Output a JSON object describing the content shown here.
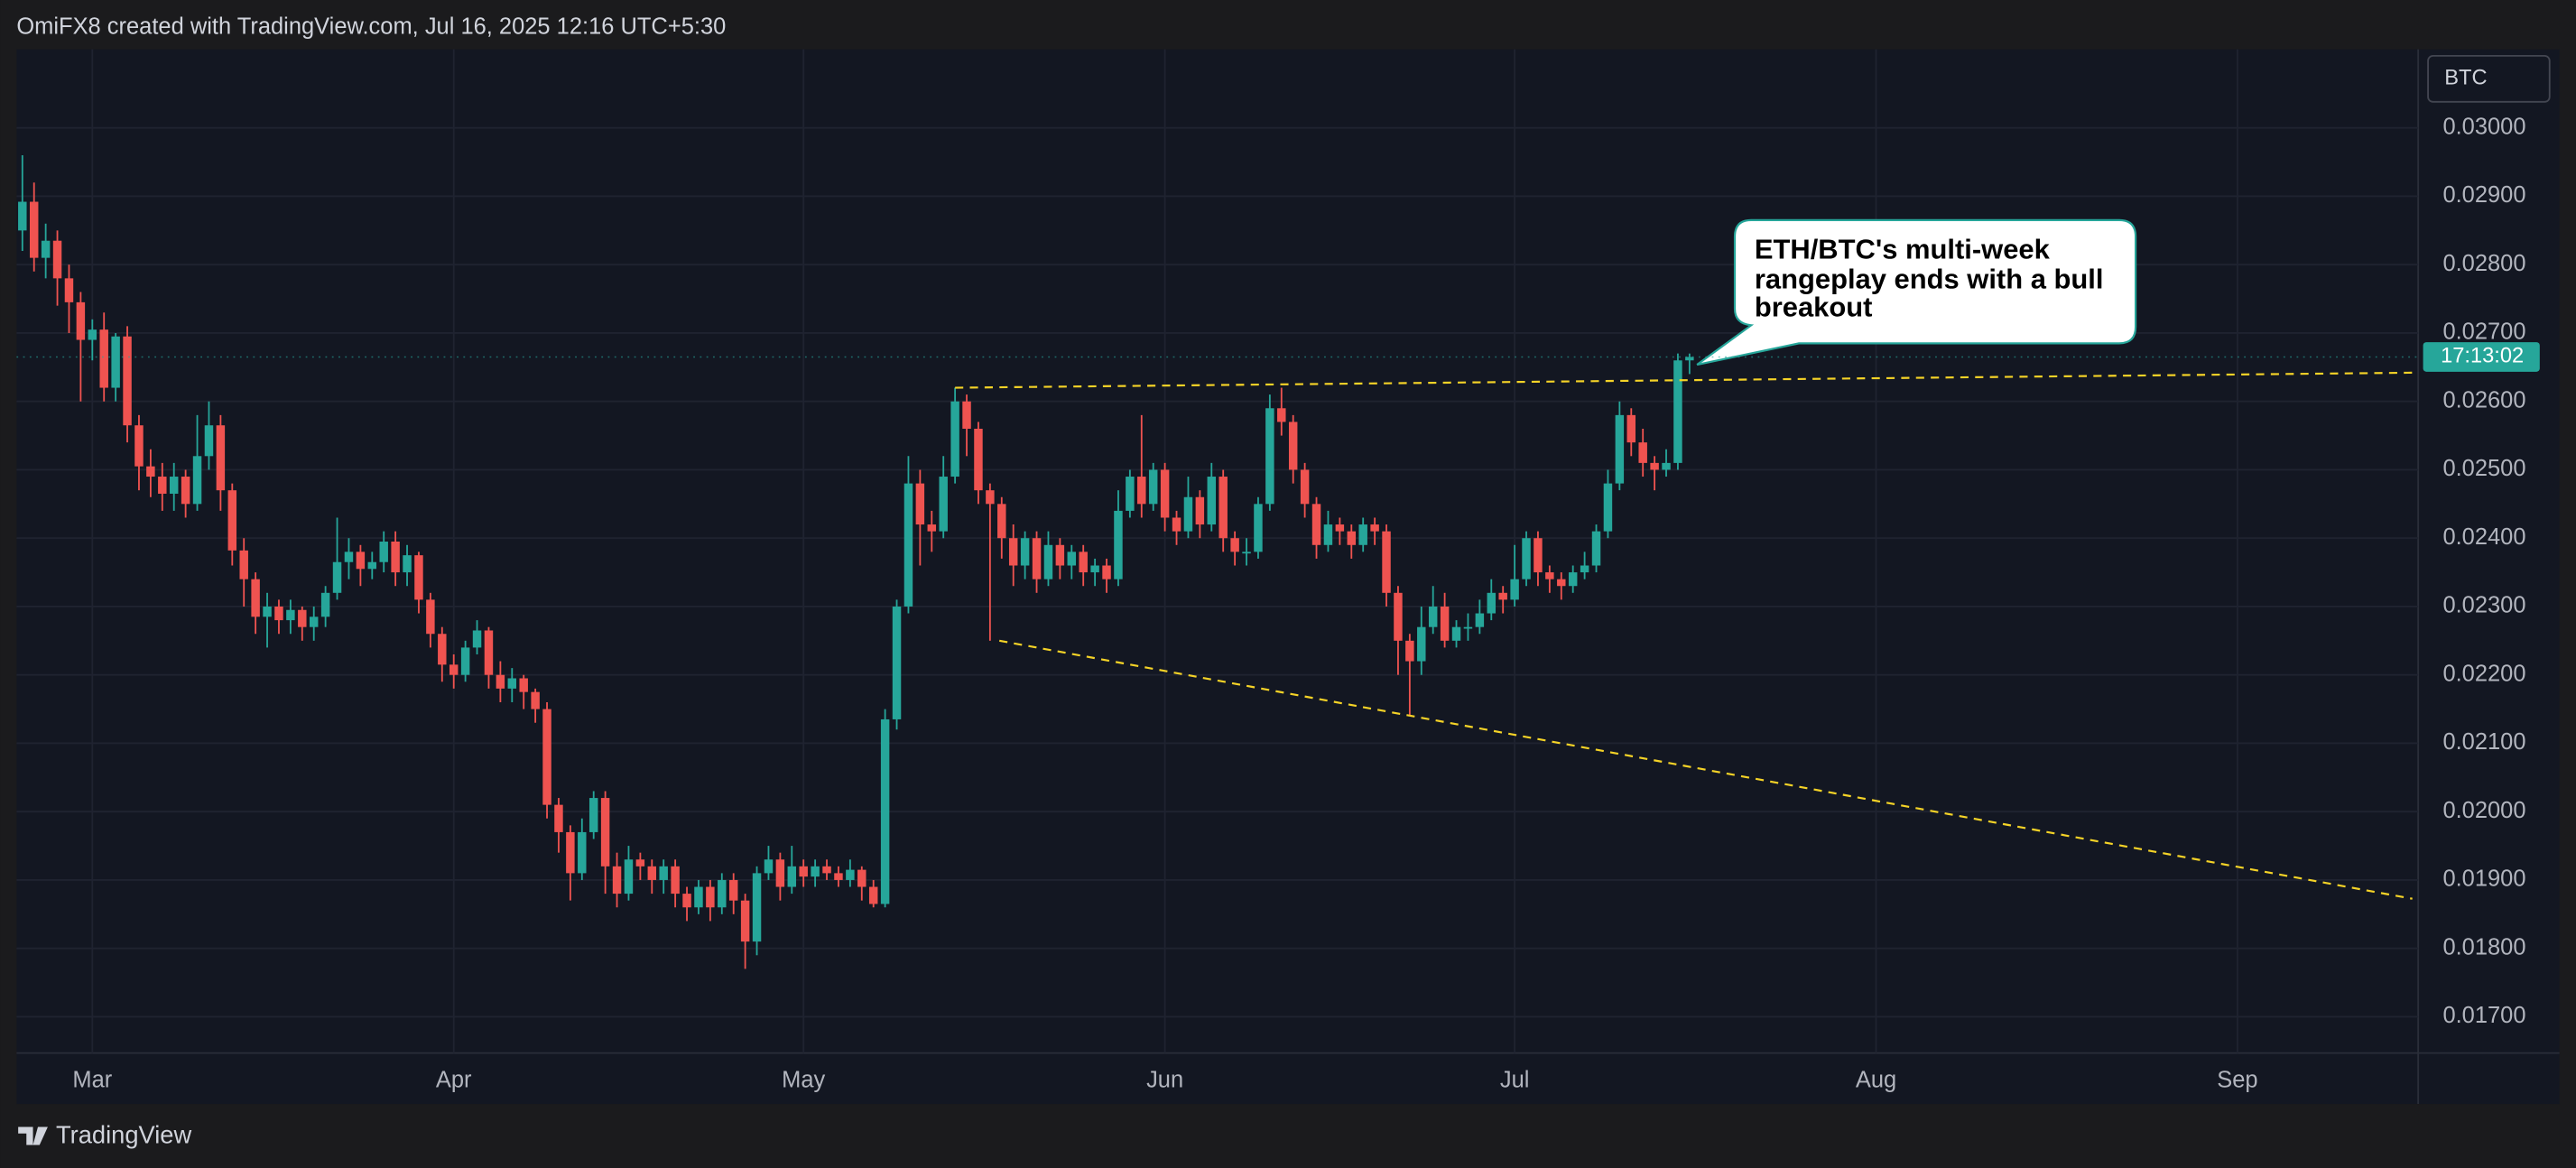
{
  "header": {
    "text": "OmiFX8 created with TradingView.com, Jul 16, 2025 12:16 UTC+5:30"
  },
  "footer": {
    "brand": "TradingView"
  },
  "chart_data": {
    "type": "candlestick",
    "symbol_label": "BTC",
    "countdown": "17:13:02",
    "annotation": {
      "lines": [
        "ETH/BTC's multi-week",
        "rangeplay ends with a bull",
        "breakout"
      ]
    },
    "up_color": "#26a69a",
    "down_color": "#ef5350",
    "grid": true,
    "xlim": [
      -0.5,
      205.5
    ],
    "xticks": [
      {
        "value": 6,
        "label": "Mar"
      },
      {
        "value": 37,
        "label": "Apr"
      },
      {
        "value": 67,
        "label": "May"
      },
      {
        "value": 98,
        "label": "Jun"
      },
      {
        "value": 128,
        "label": "Jul"
      },
      {
        "value": 159,
        "label": "Aug"
      },
      {
        "value": 190,
        "label": "Sep"
      }
    ],
    "ylim": [
      0.01647,
      0.03115
    ],
    "yticks": [
      {
        "value": 0.017,
        "label": "0.01700"
      },
      {
        "value": 0.018,
        "label": "0.01800"
      },
      {
        "value": 0.019,
        "label": "0.01900"
      },
      {
        "value": 0.02,
        "label": "0.02000"
      },
      {
        "value": 0.021,
        "label": "0.02100"
      },
      {
        "value": 0.022,
        "label": "0.02200"
      },
      {
        "value": 0.023,
        "label": "0.02300"
      },
      {
        "value": 0.024,
        "label": "0.02400"
      },
      {
        "value": 0.025,
        "label": "0.02500"
      },
      {
        "value": 0.026,
        "label": "0.02600"
      },
      {
        "value": 0.027,
        "label": "0.02700"
      },
      {
        "value": 0.028,
        "label": "0.02800"
      },
      {
        "value": 0.029,
        "label": "0.02900"
      },
      {
        "value": 0.03,
        "label": "0.03000"
      }
    ],
    "trendlines": [
      {
        "x": [
          80,
          205
        ],
        "y": [
          0.0262,
          0.02642
        ],
        "color": "#f5d327"
      },
      {
        "x": [
          83.8,
          205
        ],
        "y": [
          0.0225,
          0.018726
        ],
        "color": "#f5d327"
      }
    ],
    "x": [
      0,
      1,
      2,
      3,
      4,
      5,
      6,
      7,
      8,
      9,
      10,
      11,
      12,
      13,
      14,
      15,
      16,
      17,
      18,
      19,
      20,
      21,
      22,
      23,
      24,
      25,
      26,
      27,
      28,
      29,
      30,
      31,
      32,
      33,
      34,
      35,
      36,
      37,
      38,
      39,
      40,
      41,
      42,
      43,
      44,
      45,
      46,
      47,
      48,
      49,
      50,
      51,
      52,
      53,
      54,
      55,
      56,
      57,
      58,
      59,
      60,
      61,
      62,
      63,
      64,
      65,
      66,
      67,
      68,
      69,
      70,
      71,
      72,
      73,
      74,
      75,
      76,
      77,
      78,
      79,
      80,
      81,
      82,
      83,
      84,
      85,
      86,
      87,
      88,
      89,
      90,
      91,
      92,
      93,
      94,
      95,
      96,
      97,
      98,
      99,
      100,
      101,
      102,
      103,
      104,
      105,
      106,
      107,
      108,
      109,
      110,
      111,
      112,
      113,
      114,
      115,
      116,
      117,
      118,
      119,
      120,
      121,
      122,
      123,
      124,
      125,
      126,
      127,
      128,
      129,
      130,
      131,
      132,
      133,
      134,
      135,
      136,
      137,
      138,
      139,
      140,
      141,
      142,
      143
    ],
    "open": [
      0.0285,
      0.02892,
      0.0281,
      0.02835,
      0.0278,
      0.02745,
      0.0269,
      0.02705,
      0.0262,
      0.02695,
      0.02565,
      0.02505,
      0.0249,
      0.02465,
      0.0249,
      0.0245,
      0.0252,
      0.02565,
      0.0247,
      0.02382,
      0.0234,
      0.02285,
      0.023,
      0.0228,
      0.02295,
      0.0227,
      0.02285,
      0.0232,
      0.02365,
      0.0238,
      0.02355,
      0.02365,
      0.02395,
      0.0235,
      0.02375,
      0.0231,
      0.0226,
      0.02215,
      0.022,
      0.0224,
      0.02265,
      0.022,
      0.0218,
      0.02195,
      0.02175,
      0.0215,
      0.0201,
      0.0197,
      0.0191,
      0.0197,
      0.0202,
      0.0192,
      0.0188,
      0.0193,
      0.0192,
      0.019,
      0.0192,
      0.0188,
      0.0186,
      0.0189,
      0.0186,
      0.019,
      0.0187,
      0.0181,
      0.0191,
      0.0193,
      0.0189,
      0.0192,
      0.01905,
      0.0192,
      0.0191,
      0.019,
      0.01915,
      0.0189,
      0.01865,
      0.02135,
      0.023,
      0.0248,
      0.0242,
      0.0241,
      0.0249,
      0.026,
      0.0256,
      0.0247,
      0.0245,
      0.024,
      0.0236,
      0.024,
      0.0234,
      0.0239,
      0.0236,
      0.0238,
      0.0235,
      0.0236,
      0.0234,
      0.0244,
      0.0249,
      0.0245,
      0.025,
      0.0243,
      0.0241,
      0.0246,
      0.0242,
      0.0249,
      0.024,
      0.0238,
      0.0238,
      0.0245,
      0.0259,
      0.0257,
      0.025,
      0.0245,
      0.0239,
      0.0242,
      0.0241,
      0.0239,
      0.0242,
      0.0241,
      0.0232,
      0.0225,
      0.0222,
      0.0227,
      0.023,
      0.0225,
      0.0227,
      0.0227,
      0.0229,
      0.0232,
      0.0231,
      0.0234,
      0.024,
      0.0235,
      0.0234,
      0.0233,
      0.0235,
      0.0236,
      0.0241,
      0.0248,
      0.0258,
      0.0254,
      0.0251,
      0.025,
      0.0251,
      0.0266
    ],
    "high": [
      0.0296,
      0.0292,
      0.0286,
      0.0285,
      0.028,
      0.0276,
      0.0272,
      0.0273,
      0.027,
      0.0271,
      0.0258,
      0.0253,
      0.0251,
      0.0251,
      0.025,
      0.0258,
      0.026,
      0.0258,
      0.0248,
      0.024,
      0.0235,
      0.0232,
      0.0231,
      0.0231,
      0.023,
      0.023,
      0.0233,
      0.0243,
      0.024,
      0.0239,
      0.0238,
      0.0241,
      0.0241,
      0.0239,
      0.0238,
      0.0232,
      0.0227,
      0.0223,
      0.0225,
      0.0228,
      0.0227,
      0.0222,
      0.0221,
      0.022,
      0.0218,
      0.0216,
      0.0202,
      0.0198,
      0.0199,
      0.0203,
      0.0203,
      0.0194,
      0.0195,
      0.0194,
      0.0193,
      0.0193,
      0.0193,
      0.0189,
      0.019,
      0.019,
      0.0191,
      0.0191,
      0.0188,
      0.0192,
      0.0195,
      0.0194,
      0.0195,
      0.0193,
      0.0193,
      0.0193,
      0.0192,
      0.0193,
      0.0192,
      0.019,
      0.0215,
      0.0231,
      0.0252,
      0.025,
      0.0244,
      0.0252,
      0.0262,
      0.0261,
      0.0257,
      0.0248,
      0.0246,
      0.0242,
      0.0241,
      0.0241,
      0.0241,
      0.024,
      0.0239,
      0.0239,
      0.0237,
      0.0237,
      0.0247,
      0.025,
      0.0258,
      0.0251,
      0.0251,
      0.0244,
      0.0249,
      0.0247,
      0.0251,
      0.025,
      0.0241,
      0.024,
      0.0246,
      0.0261,
      0.0262,
      0.0258,
      0.0251,
      0.0246,
      0.0244,
      0.0243,
      0.0242,
      0.0243,
      0.0243,
      0.0242,
      0.0233,
      0.0226,
      0.023,
      0.0233,
      0.0232,
      0.0228,
      0.0229,
      0.0231,
      0.0234,
      0.0233,
      0.0239,
      0.0241,
      0.0241,
      0.0236,
      0.0235,
      0.0236,
      0.0238,
      0.0242,
      0.025,
      0.026,
      0.0259,
      0.0256,
      0.0252,
      0.0253,
      0.0267,
      0.0267
    ],
    "low": [
      0.0282,
      0.0279,
      0.0278,
      0.0274,
      0.027,
      0.026,
      0.0266,
      0.026,
      0.026,
      0.0254,
      0.0247,
      0.0246,
      0.0244,
      0.0244,
      0.0243,
      0.0244,
      0.025,
      0.0244,
      0.0236,
      0.023,
      0.0226,
      0.0224,
      0.0226,
      0.0226,
      0.0225,
      0.0225,
      0.0227,
      0.0231,
      0.0234,
      0.0233,
      0.0234,
      0.0235,
      0.0233,
      0.0233,
      0.0229,
      0.0224,
      0.0219,
      0.0218,
      0.0219,
      0.0223,
      0.0218,
      0.0216,
      0.0216,
      0.0215,
      0.0213,
      0.0199,
      0.0194,
      0.0187,
      0.019,
      0.0196,
      0.0188,
      0.0186,
      0.0187,
      0.019,
      0.0188,
      0.0188,
      0.0186,
      0.0184,
      0.0185,
      0.0184,
      0.0185,
      0.0185,
      0.0177,
      0.0179,
      0.019,
      0.0187,
      0.0188,
      0.0189,
      0.0189,
      0.019,
      0.0189,
      0.0189,
      0.0187,
      0.0186,
      0.0186,
      0.0212,
      0.0229,
      0.0236,
      0.0238,
      0.024,
      0.0248,
      0.0252,
      0.0245,
      0.0225,
      0.0237,
      0.0233,
      0.0234,
      0.0232,
      0.0233,
      0.0234,
      0.0234,
      0.0233,
      0.0233,
      0.0232,
      0.0233,
      0.0243,
      0.0243,
      0.0244,
      0.0241,
      0.0239,
      0.024,
      0.024,
      0.0241,
      0.0238,
      0.0236,
      0.0236,
      0.0237,
      0.0244,
      0.0255,
      0.0248,
      0.0243,
      0.0237,
      0.0238,
      0.0239,
      0.0237,
      0.0238,
      0.0239,
      0.023,
      0.022,
      0.0214,
      0.022,
      0.0226,
      0.0224,
      0.0224,
      0.0225,
      0.0226,
      0.0228,
      0.0229,
      0.023,
      0.0233,
      0.0233,
      0.0232,
      0.0231,
      0.0232,
      0.0234,
      0.0235,
      0.024,
      0.0247,
      0.0252,
      0.0249,
      0.0247,
      0.0249,
      0.025,
      0.0264
    ],
    "close": [
      0.02892,
      0.0281,
      0.02835,
      0.0278,
      0.02745,
      0.0269,
      0.02705,
      0.0262,
      0.02695,
      0.02565,
      0.02505,
      0.0249,
      0.02465,
      0.0249,
      0.0245,
      0.0252,
      0.02565,
      0.0247,
      0.02382,
      0.0234,
      0.02285,
      0.023,
      0.0228,
      0.02295,
      0.0227,
      0.02285,
      0.0232,
      0.02365,
      0.0238,
      0.02355,
      0.02365,
      0.02395,
      0.0235,
      0.02375,
      0.0231,
      0.0226,
      0.02215,
      0.022,
      0.0224,
      0.02265,
      0.022,
      0.0218,
      0.02195,
      0.02175,
      0.0215,
      0.0201,
      0.0197,
      0.0191,
      0.0197,
      0.0202,
      0.0192,
      0.0188,
      0.0193,
      0.0192,
      0.019,
      0.0192,
      0.0188,
      0.0186,
      0.0189,
      0.0186,
      0.019,
      0.0187,
      0.0181,
      0.0191,
      0.0193,
      0.0189,
      0.0192,
      0.01905,
      0.0192,
      0.0191,
      0.019,
      0.01915,
      0.0189,
      0.01865,
      0.02135,
      0.023,
      0.0248,
      0.0242,
      0.0241,
      0.0249,
      0.026,
      0.0256,
      0.0247,
      0.0245,
      0.024,
      0.0236,
      0.024,
      0.0234,
      0.0239,
      0.0236,
      0.0238,
      0.0235,
      0.0236,
      0.0234,
      0.0244,
      0.0249,
      0.0245,
      0.025,
      0.0243,
      0.0241,
      0.0246,
      0.0242,
      0.0249,
      0.024,
      0.0238,
      0.0238,
      0.0245,
      0.0259,
      0.0257,
      0.025,
      0.0245,
      0.0239,
      0.0242,
      0.0241,
      0.0239,
      0.0242,
      0.0241,
      0.0232,
      0.0225,
      0.0222,
      0.0227,
      0.023,
      0.0225,
      0.0227,
      0.0227,
      0.0229,
      0.0232,
      0.0231,
      0.0234,
      0.024,
      0.0235,
      0.0234,
      0.0233,
      0.0235,
      0.0236,
      0.0241,
      0.0248,
      0.0258,
      0.0254,
      0.0251,
      0.025,
      0.0251,
      0.0266,
      0.02665
    ]
  }
}
